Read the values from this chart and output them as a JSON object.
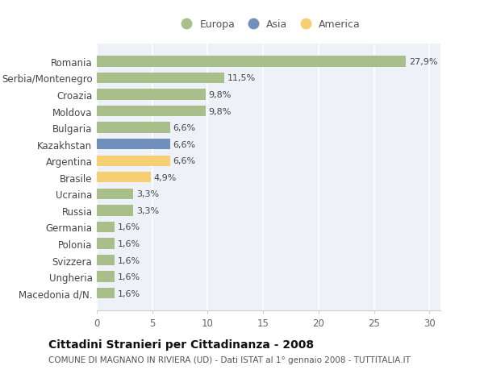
{
  "categories": [
    "Romania",
    "Serbia/Montenegro",
    "Croazia",
    "Moldova",
    "Bulgaria",
    "Kazakhstan",
    "Argentina",
    "Brasile",
    "Ucraina",
    "Russia",
    "Germania",
    "Polonia",
    "Svizzera",
    "Ungheria",
    "Macedonia d/N."
  ],
  "values": [
    27.9,
    11.5,
    9.8,
    9.8,
    6.6,
    6.6,
    6.6,
    4.9,
    3.3,
    3.3,
    1.6,
    1.6,
    1.6,
    1.6,
    1.6
  ],
  "labels": [
    "27,9%",
    "11,5%",
    "9,8%",
    "9,8%",
    "6,6%",
    "6,6%",
    "6,6%",
    "4,9%",
    "3,3%",
    "3,3%",
    "1,6%",
    "1,6%",
    "1,6%",
    "1,6%",
    "1,6%"
  ],
  "colors": [
    "#a8bf8a",
    "#a8bf8a",
    "#a8bf8a",
    "#a8bf8a",
    "#a8bf8a",
    "#7090bb",
    "#f5cf72",
    "#f5cf72",
    "#a8bf8a",
    "#a8bf8a",
    "#a8bf8a",
    "#a8bf8a",
    "#a8bf8a",
    "#a8bf8a",
    "#a8bf8a"
  ],
  "legend_labels": [
    "Europa",
    "Asia",
    "America"
  ],
  "legend_colors": [
    "#a8bf8a",
    "#7090bb",
    "#f5cf72"
  ],
  "xlim": [
    0,
    31
  ],
  "xticks": [
    0,
    5,
    10,
    15,
    20,
    25,
    30
  ],
  "title": "Cittadini Stranieri per Cittadinanza - 2008",
  "subtitle": "COMUNE DI MAGNANO IN RIVIERA (UD) - Dati ISTAT al 1° gennaio 2008 - TUTTITALIA.IT",
  "fig_background": "#ffffff",
  "plot_background": "#eef2f8",
  "grid_color": "#ffffff",
  "label_fontsize": 8.0,
  "ytick_fontsize": 8.5,
  "xtick_fontsize": 8.5,
  "title_fontsize": 10,
  "subtitle_fontsize": 7.5,
  "bar_height": 0.65
}
